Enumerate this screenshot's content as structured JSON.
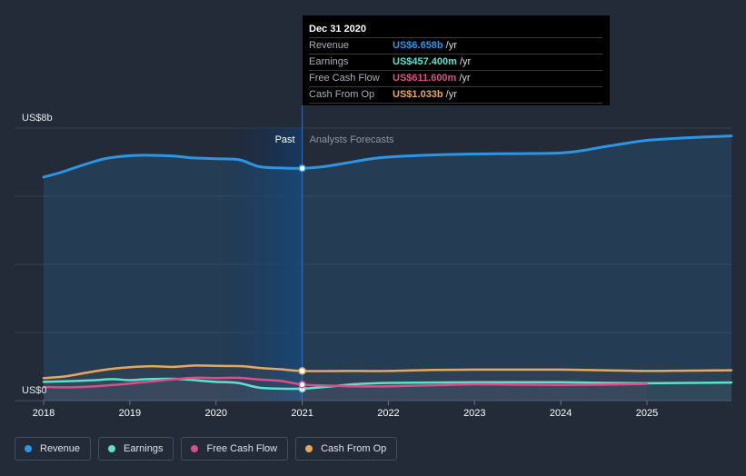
{
  "chart_data": {
    "type": "line",
    "y_axis": {
      "top_label": "US$8b",
      "bottom_label": "US$0",
      "ylim": [
        0,
        8
      ]
    },
    "x_ticks": [
      "2018",
      "2019",
      "2020",
      "2021",
      "2022",
      "2023",
      "2024",
      "2025"
    ],
    "xlim": [
      2018.0,
      2025.98
    ],
    "divider_x": 2021.0,
    "region_labels": {
      "past": "Past",
      "forecast": "Analysts Forecasts"
    },
    "series": [
      {
        "name": "Revenue",
        "color": "#2b95e6",
        "fill": true,
        "x": [
          2018.0,
          2018.2,
          2018.5,
          2018.75,
          2019.1,
          2019.5,
          2019.7,
          2020.0,
          2020.27,
          2020.5,
          2020.75,
          2021.0,
          2021.25,
          2021.5,
          2021.75,
          2022.0,
          2022.5,
          2023.0,
          2023.5,
          2024.0,
          2024.25,
          2024.5,
          2024.75,
          2025.0,
          2025.5,
          2025.98
        ],
        "y": [
          6.56,
          6.7,
          6.95,
          7.12,
          7.2,
          7.18,
          7.13,
          7.1,
          7.07,
          6.87,
          6.83,
          6.82,
          6.87,
          6.97,
          7.08,
          7.15,
          7.21,
          7.24,
          7.25,
          7.27,
          7.34,
          7.45,
          7.55,
          7.64,
          7.72,
          7.77
        ]
      },
      {
        "name": "Earnings",
        "color": "#5fe0cf",
        "fill": false,
        "x": [
          2018.0,
          2018.3,
          2018.6,
          2018.8,
          2019.0,
          2019.2,
          2019.5,
          2019.75,
          2020.0,
          2020.25,
          2020.5,
          2020.75,
          2021.0,
          2021.3,
          2021.6,
          2022.0,
          2022.5,
          2023.0,
          2023.5,
          2024.0,
          2024.5,
          2025.0,
          2025.5,
          2025.98
        ],
        "y": [
          0.55,
          0.57,
          0.6,
          0.63,
          0.6,
          0.63,
          0.64,
          0.6,
          0.55,
          0.52,
          0.38,
          0.35,
          0.35,
          0.41,
          0.48,
          0.52,
          0.53,
          0.54,
          0.54,
          0.54,
          0.52,
          0.51,
          0.52,
          0.53
        ]
      },
      {
        "name": "Free Cash Flow",
        "color": "#d6508a",
        "fill": false,
        "x": [
          2018.0,
          2018.3,
          2018.6,
          2019.0,
          2019.4,
          2019.75,
          2020.0,
          2020.25,
          2020.5,
          2020.75,
          2021.0,
          2021.3,
          2021.6,
          2022.0,
          2022.5,
          2023.0,
          2023.5,
          2024.0,
          2024.5,
          2025.0
        ],
        "y": [
          0.4,
          0.39,
          0.42,
          0.5,
          0.6,
          0.67,
          0.66,
          0.67,
          0.62,
          0.58,
          0.47,
          0.44,
          0.42,
          0.42,
          0.45,
          0.48,
          0.47,
          0.46,
          0.47,
          0.49
        ]
      },
      {
        "name": "Cash From Op",
        "color": "#e8a85a",
        "fill": false,
        "x": [
          2018.0,
          2018.25,
          2018.5,
          2018.75,
          2019.0,
          2019.25,
          2019.5,
          2019.75,
          2020.0,
          2020.3,
          2020.5,
          2020.75,
          2021.0,
          2021.5,
          2022.0,
          2022.5,
          2023.0,
          2023.5,
          2024.0,
          2024.5,
          2025.0,
          2025.5,
          2025.98
        ],
        "y": [
          0.66,
          0.71,
          0.82,
          0.92,
          0.98,
          1.01,
          0.99,
          1.03,
          1.02,
          1.01,
          0.96,
          0.92,
          0.87,
          0.87,
          0.87,
          0.9,
          0.91,
          0.91,
          0.91,
          0.89,
          0.87,
          0.88,
          0.89
        ]
      }
    ],
    "tooltip": {
      "date": "Dec 31 2020",
      "rows": [
        {
          "name": "Revenue",
          "value": "US$6.658b",
          "unit": "/yr",
          "color": "#2b95e6"
        },
        {
          "name": "Earnings",
          "value": "US$457.400m",
          "unit": "/yr",
          "color": "#5fe0cf"
        },
        {
          "name": "Free Cash Flow",
          "value": "US$611.600m",
          "unit": "/yr",
          "color": "#d6508a"
        },
        {
          "name": "Cash From Op",
          "value": "US$1.033b",
          "unit": "/yr",
          "color": "#e8a85a"
        }
      ]
    },
    "legend": [
      {
        "name": "Revenue",
        "color": "#2b95e6"
      },
      {
        "name": "Earnings",
        "color": "#5fe0cf"
      },
      {
        "name": "Free Cash Flow",
        "color": "#d6508a"
      },
      {
        "name": "Cash From Op",
        "color": "#e8a85a"
      }
    ],
    "grid": true
  }
}
